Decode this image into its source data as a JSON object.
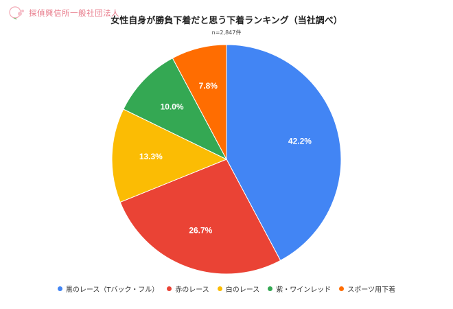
{
  "logo": {
    "text": "探偵興信所一般社団法人"
  },
  "chart_data": {
    "type": "pie",
    "title": "女性自身が勝負下着だと思う下着ランキング（当社調べ）",
    "subtitle": "n=2,847件",
    "legend_position": "bottom",
    "start_angle": "top, clockwise",
    "slices": [
      {
        "name": "黒のレース（Tバック・フル）",
        "value": 42.2,
        "label": "42.2%",
        "color": "#4285f4"
      },
      {
        "name": "赤のレース",
        "value": 26.7,
        "label": "26.7%",
        "color": "#ea4335"
      },
      {
        "name": "白のレース",
        "value": 13.3,
        "label": "13.3%",
        "color": "#fbbc04"
      },
      {
        "name": "紫・ワインレッド",
        "value": 10.0,
        "label": "10.0%",
        "color": "#34a853"
      },
      {
        "name": "スポーツ用下着",
        "value": 7.8,
        "label": "7.8%",
        "color": "#ff6d01"
      }
    ]
  }
}
